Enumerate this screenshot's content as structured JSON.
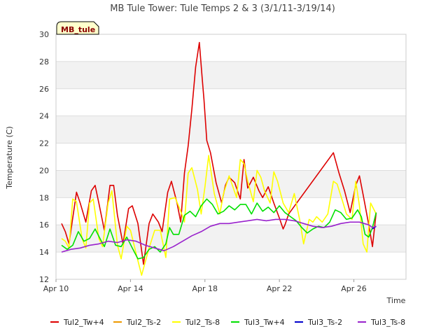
{
  "chart_data": {
    "type": "line",
    "title": "MB Tule Tower: Tule Temps 2 & 3 (3/1/11-3/19/14)",
    "site_badge": "MB_tule",
    "xlabel": "Time",
    "ylabel": "Temperature (C)",
    "xlim": [
      10.0,
      28.8
    ],
    "ylim": [
      12,
      30
    ],
    "x_ticks": [
      {
        "value": 10,
        "label": "Apr 10"
      },
      {
        "value": 14,
        "label": "Apr 14"
      },
      {
        "value": 18,
        "label": "Apr 18"
      },
      {
        "value": 22,
        "label": "Apr 22"
      },
      {
        "value": 26,
        "label": "Apr 26"
      }
    ],
    "y_ticks": [
      12,
      14,
      16,
      18,
      20,
      22,
      24,
      26,
      28,
      30
    ],
    "grid": true,
    "legend_position": "bottom",
    "series": [
      {
        "name": "Tul2_Tw+4",
        "color": "#dd0000",
        "x": [
          10.3,
          10.5,
          10.7,
          10.9,
          11.1,
          11.3,
          11.6,
          11.9,
          12.1,
          12.3,
          12.6,
          12.9,
          13.1,
          13.3,
          13.6,
          13.9,
          14.1,
          14.4,
          14.7,
          15.0,
          15.2,
          15.5,
          15.7,
          16.0,
          16.2,
          16.5,
          16.7,
          16.9,
          17.1,
          17.3,
          17.5,
          17.7,
          17.85,
          17.95,
          18.1,
          18.3,
          18.6,
          18.9,
          19.1,
          19.3,
          19.6,
          19.9,
          20.1,
          20.3,
          20.6,
          20.9,
          21.1,
          21.4,
          21.7,
          22.0,
          22.2,
          22.3,
          22.5,
          24.9,
          25.2,
          25.5,
          25.8,
          26.1,
          26.3,
          26.5,
          26.8,
          27.0,
          27.2
        ],
        "y": [
          16.1,
          15.5,
          14.6,
          16.5,
          18.4,
          17.6,
          16.2,
          18.5,
          18.9,
          17.6,
          15.6,
          18.9,
          18.9,
          16.7,
          14.6,
          17.2,
          17.4,
          16.1,
          13.1,
          16.1,
          16.8,
          16.2,
          15.5,
          18.4,
          19.2,
          17.6,
          16.2,
          19.8,
          21.8,
          24.5,
          27.6,
          29.4,
          26.8,
          25.2,
          22.2,
          21.3,
          19.1,
          17.6,
          18.9,
          19.5,
          19.1,
          17.9,
          20.8,
          18.7,
          19.5,
          18.5,
          18.0,
          18.8,
          17.6,
          16.5,
          15.7,
          16.0,
          16.8,
          21.3,
          19.8,
          18.5,
          16.9,
          18.9,
          19.6,
          18.2,
          16.0,
          14.4,
          16.9
        ]
      },
      {
        "name": "Tul2_Ts-2",
        "color": "#ee9900",
        "x": [],
        "y": []
      },
      {
        "name": "Tul2_Ts-8",
        "color": "#ffff00",
        "x": [
          10.3,
          10.5,
          10.7,
          10.9,
          11.1,
          11.4,
          11.6,
          11.8,
          12.0,
          12.3,
          12.5,
          12.8,
          13.0,
          13.3,
          13.5,
          13.8,
          14.0,
          14.3,
          14.6,
          15.0,
          15.3,
          15.6,
          15.9,
          16.1,
          16.4,
          16.7,
          16.9,
          17.1,
          17.3,
          17.6,
          17.8,
          18.0,
          18.2,
          18.5,
          18.8,
          19.0,
          19.3,
          19.7,
          19.9,
          20.1,
          20.3,
          20.6,
          20.8,
          21.0,
          21.2,
          21.5,
          21.7,
          21.9,
          22.2,
          22.5,
          22.8,
          23.1,
          23.3,
          23.6,
          23.8,
          24.0,
          24.3,
          24.6,
          24.9,
          25.1,
          25.4,
          25.6,
          25.9,
          26.1,
          26.3,
          26.5,
          26.7,
          26.9,
          27.2
        ],
        "y": [
          15.0,
          14.8,
          14.3,
          17.9,
          17.7,
          15.0,
          14.3,
          17.6,
          17.9,
          15.0,
          14.4,
          17.6,
          18.5,
          14.5,
          13.5,
          15.9,
          15.6,
          13.9,
          12.3,
          14.3,
          15.6,
          15.6,
          13.6,
          17.9,
          18.0,
          17.0,
          16.2,
          19.8,
          20.2,
          18.6,
          16.8,
          18.8,
          21.1,
          18.3,
          16.8,
          18.3,
          19.6,
          18.0,
          20.8,
          20.5,
          19.2,
          17.7,
          20.0,
          19.5,
          18.5,
          17.6,
          19.9,
          19.2,
          17.6,
          16.9,
          18.3,
          16.3,
          14.6,
          16.4,
          16.2,
          16.6,
          16.2,
          16.8,
          19.2,
          19.0,
          17.7,
          16.8,
          16.4,
          19.2,
          17.4,
          14.6,
          14.0,
          17.6,
          16.8
        ]
      },
      {
        "name": "Tul3_Tw+4",
        "color": "#00e000",
        "x": [
          10.3,
          10.6,
          10.9,
          11.2,
          11.5,
          11.8,
          12.1,
          12.4,
          12.6,
          12.9,
          13.2,
          13.5,
          13.8,
          14.1,
          14.4,
          14.7,
          15.0,
          15.3,
          15.6,
          15.9,
          16.1,
          16.3,
          16.6,
          16.9,
          17.2,
          17.5,
          17.8,
          18.1,
          18.4,
          18.7,
          19.0,
          19.3,
          19.6,
          19.9,
          20.2,
          20.5,
          20.8,
          21.1,
          21.4,
          21.7,
          22.0,
          22.3,
          22.6,
          22.9,
          23.2,
          23.5,
          23.8,
          24.1,
          24.4,
          24.7,
          25.0,
          25.3,
          25.6,
          25.9,
          26.2,
          26.4,
          26.6,
          26.8,
          27.0,
          27.2
        ],
        "y": [
          14.5,
          14.2,
          14.5,
          15.5,
          14.8,
          15.0,
          15.7,
          14.9,
          14.4,
          15.7,
          14.5,
          14.4,
          15.1,
          14.3,
          13.5,
          13.6,
          14.2,
          14.4,
          14.0,
          14.6,
          15.8,
          15.3,
          15.3,
          16.7,
          17.0,
          16.6,
          17.4,
          17.9,
          17.5,
          16.8,
          17.0,
          17.4,
          17.1,
          17.5,
          17.5,
          16.8,
          17.6,
          17.0,
          17.3,
          16.9,
          17.4,
          16.9,
          16.6,
          16.3,
          15.8,
          15.4,
          15.7,
          15.9,
          15.8,
          16.2,
          17.1,
          16.9,
          16.4,
          16.5,
          17.1,
          16.6,
          15.3,
          15.1,
          15.8,
          16.9
        ]
      },
      {
        "name": "Tul3_Ts-2",
        "color": "#0000cc",
        "x": [
          27.0,
          27.2
        ],
        "y": [
          15.7,
          15.9
        ]
      },
      {
        "name": "Tul3_Ts-8",
        "color": "#9922cc",
        "x": [
          10.3,
          10.8,
          11.3,
          11.8,
          12.3,
          12.8,
          13.3,
          13.8,
          14.3,
          14.8,
          15.3,
          15.8,
          16.3,
          16.8,
          17.3,
          17.8,
          18.3,
          18.8,
          19.3,
          19.8,
          20.3,
          20.8,
          21.3,
          21.8,
          22.3,
          22.8,
          23.3,
          23.8,
          24.3,
          24.8,
          25.3,
          25.8,
          26.3,
          26.8,
          27.0,
          27.2
        ],
        "y": [
          14.0,
          14.2,
          14.3,
          14.5,
          14.6,
          14.8,
          14.7,
          14.9,
          14.8,
          14.5,
          14.3,
          14.1,
          14.4,
          14.8,
          15.2,
          15.5,
          15.9,
          16.1,
          16.1,
          16.2,
          16.3,
          16.4,
          16.3,
          16.4,
          16.4,
          16.3,
          16.1,
          15.9,
          15.8,
          15.9,
          16.1,
          16.2,
          16.2,
          16.0,
          15.8,
          15.9
        ]
      }
    ]
  }
}
